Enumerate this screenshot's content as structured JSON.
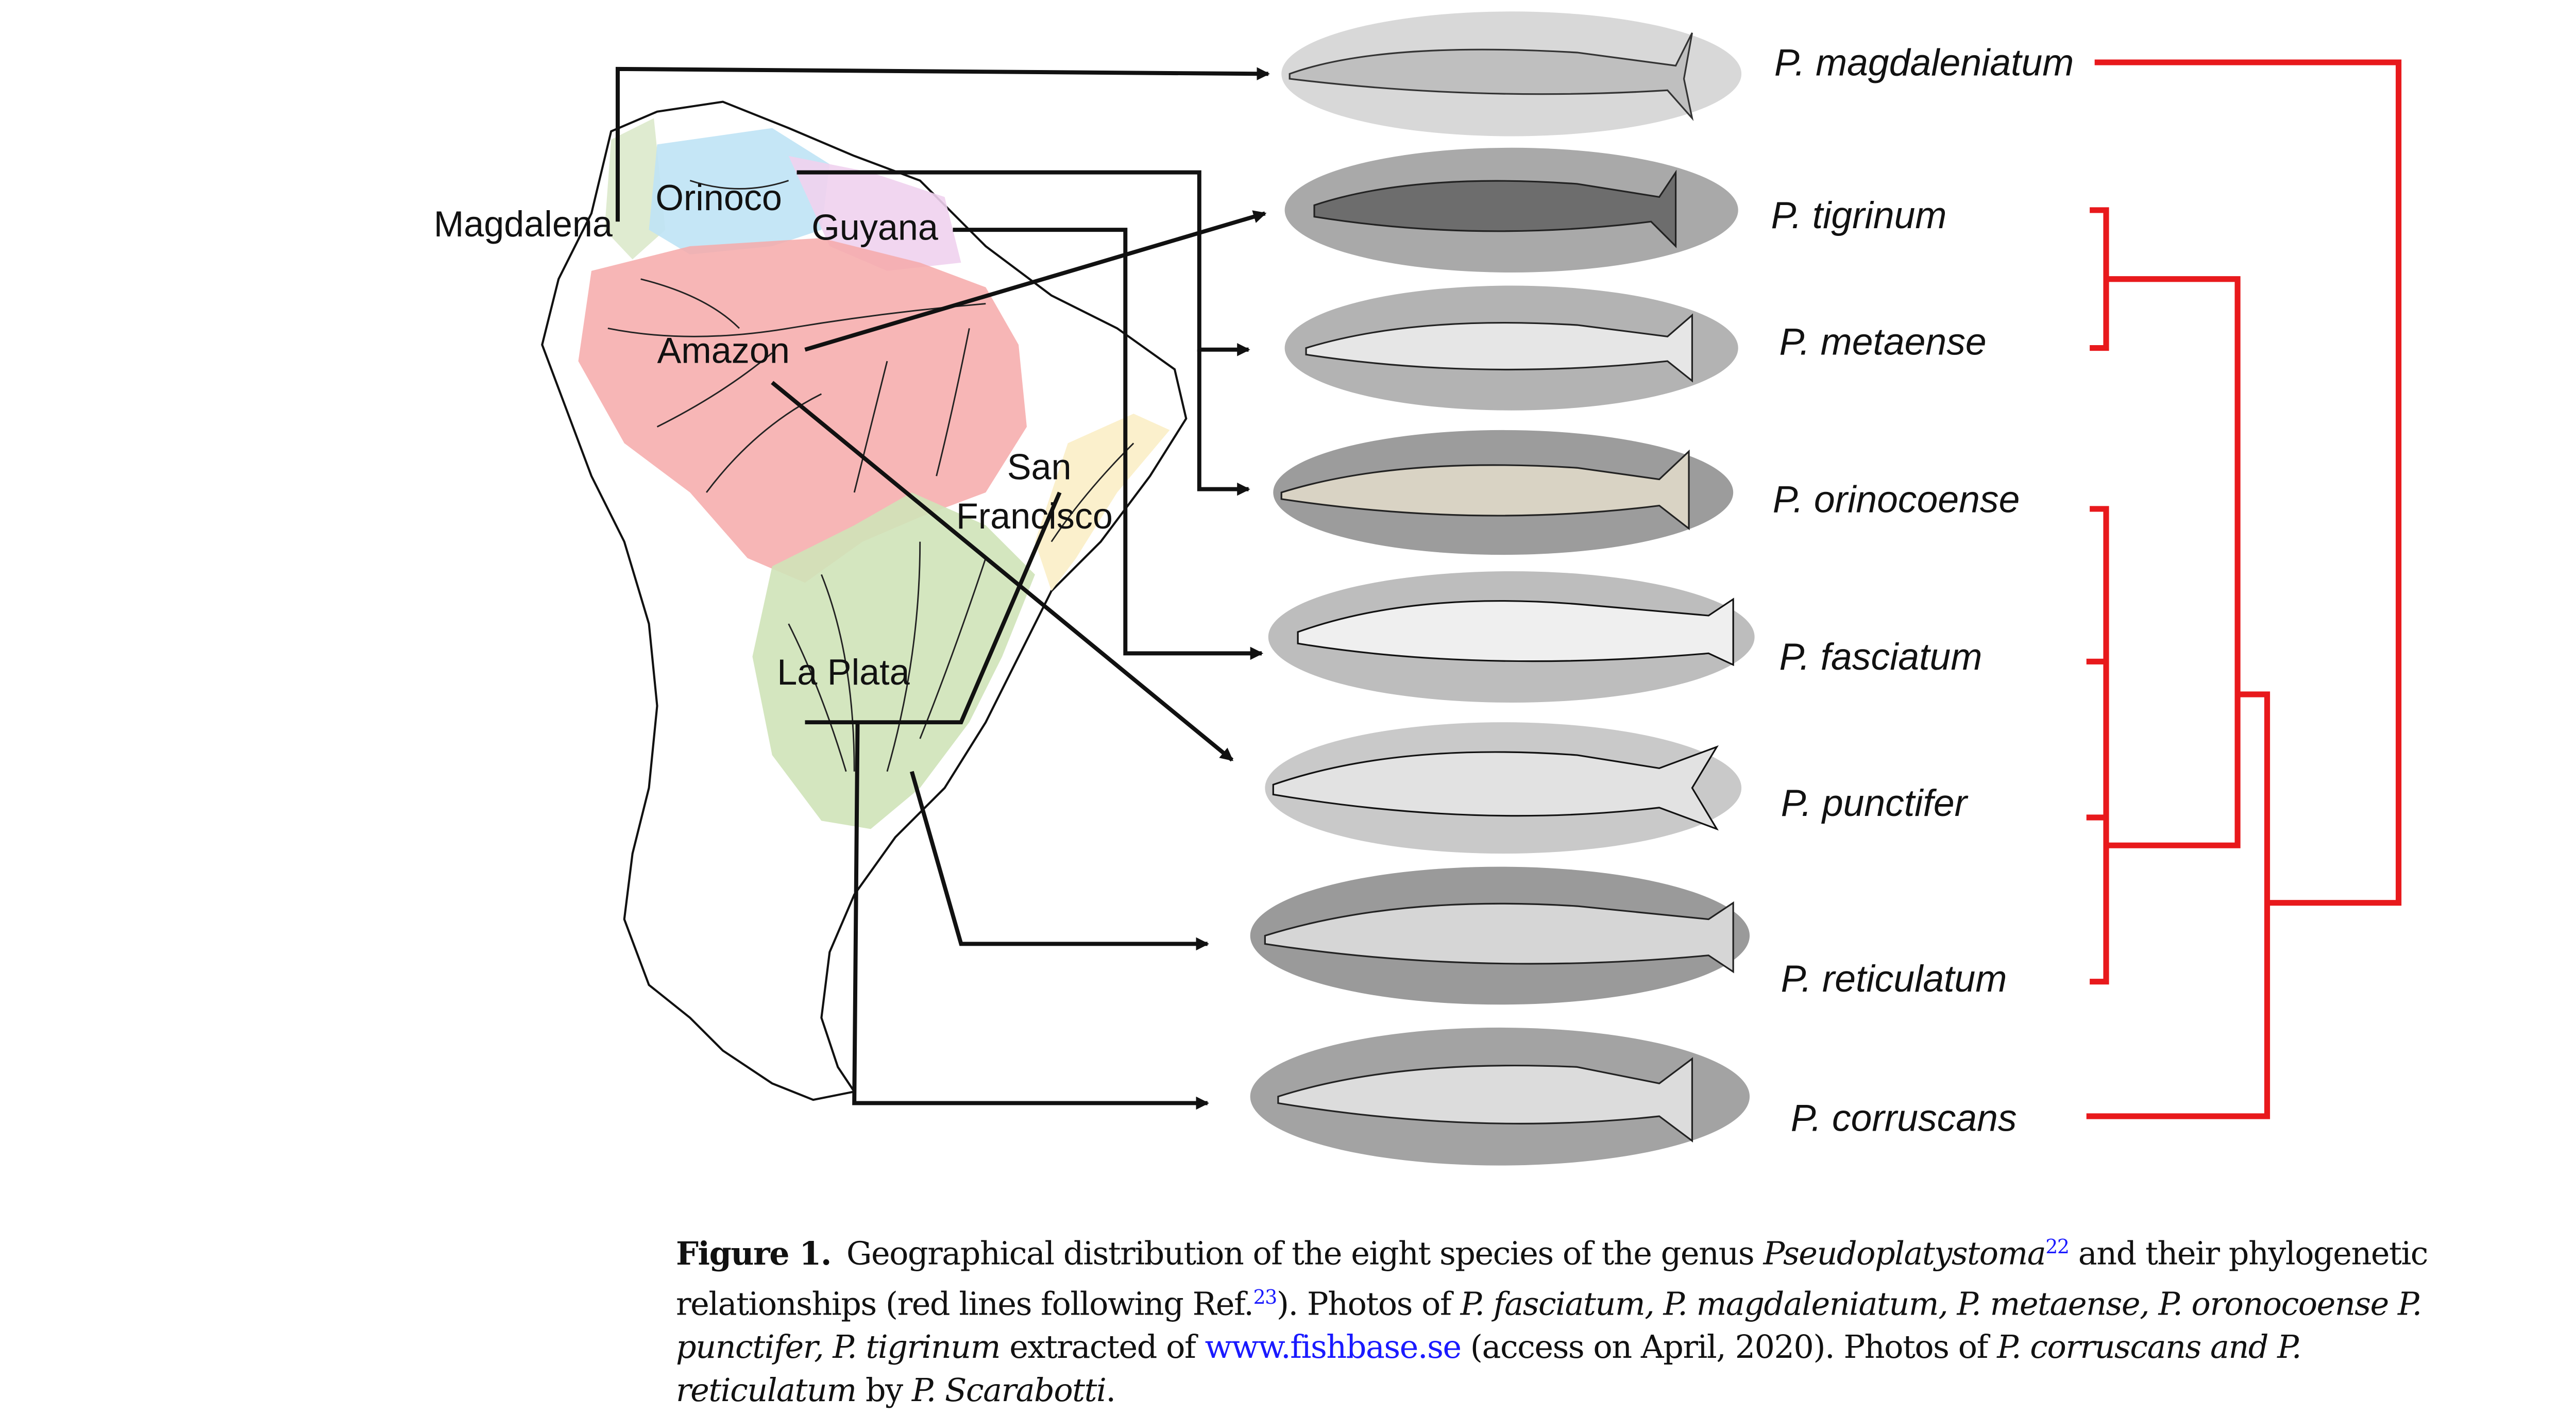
{
  "figure": {
    "regions": [
      {
        "name": "Magdalena",
        "color": "#d9e8c8"
      },
      {
        "name": "Orinoco",
        "color": "#bfe3f5"
      },
      {
        "name": "Guyana",
        "color": "#f0d2ee"
      },
      {
        "name": "Amazon",
        "color": "#f6a9a9"
      },
      {
        "name": "San",
        "color": "#fbefc9"
      },
      {
        "name": "Francisco",
        "color": "#fbefc9"
      },
      {
        "name": "La Plata",
        "color": "#cfe3b8"
      }
    ],
    "species": [
      "P. magdaleniatum",
      "P. tigrinum",
      "P. metaense",
      "P. orinocoense",
      "P. fasciatum",
      "P. punctifer",
      "P. reticulatum",
      "P. corruscans"
    ],
    "tree_color": "#e8191c",
    "arrow_color": "#111111"
  },
  "caption": {
    "label": "Figure 1.",
    "t1": "Geographical distribution of the eight species of the genus ",
    "genus": "Pseudoplatystoma",
    "ref1": "22",
    "t2": " and their phylogenetic relationships (red lines following Ref.",
    "ref2": "23",
    "t3": "). Photos of ",
    "sp1": "P. fasciatum, P. magdaleniatum, P. metaense, P. oronocoense P. punctifer, P. tigrinum",
    "t4": " extracted of ",
    "link": "www.fishbase.se",
    "t5": " (access on April, 2020). Photos of ",
    "sp2": "P. corruscans and P. reticulatum",
    "t6": " by ",
    "author": "P. Scarabotti",
    "t7": "."
  }
}
